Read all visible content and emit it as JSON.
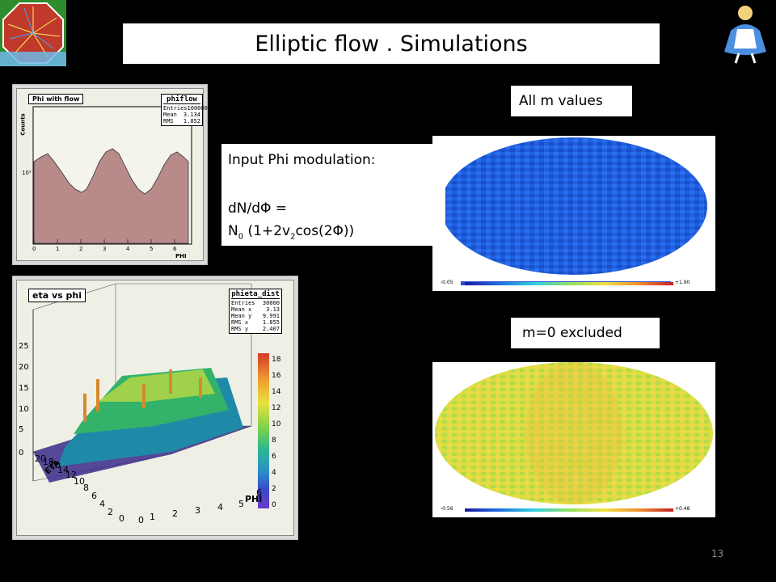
{
  "slide": {
    "title": "Elliptic flow . Simulations",
    "page_number": "13"
  },
  "phi_hist": {
    "title": "Phi with flow",
    "stats_name": "phiflow",
    "stats": [
      {
        "label": "Entries",
        "value": "100000"
      },
      {
        "label": "Mean",
        "value": "3.134"
      },
      {
        "label": "RMS",
        "value": "1.852"
      }
    ],
    "ylabel": "Counts",
    "xlabel": "PHI",
    "ytick": "10³",
    "xticks": [
      "0",
      "1",
      "2",
      "3",
      "4",
      "5",
      "6"
    ]
  },
  "modulation": {
    "line1": "Input Phi modulation:",
    "line2": "dN/dΦ =",
    "line3_prefix": "N",
    "line3_sub0": "0",
    "line3_mid": " (1+2v",
    "line3_sub2": "2",
    "line3_suffix": "cos(2Φ))"
  },
  "eta_phi": {
    "title": "eta vs phi",
    "stats_name": "phieta_dist",
    "stats": [
      {
        "label": "Entries",
        "value": "30000"
      },
      {
        "label": "Mean x",
        "value": "3.13"
      },
      {
        "label": "Mean y",
        "value": "9.991"
      },
      {
        "label": "RMS x",
        "value": "1.855"
      },
      {
        "label": "RMS y",
        "value": "2.407"
      }
    ],
    "zticks": [
      "0",
      "5",
      "10",
      "15",
      "20",
      "25"
    ],
    "palette_ticks": [
      "0",
      "2",
      "4",
      "6",
      "8",
      "10",
      "12",
      "14",
      "16",
      "18"
    ],
    "xticks": [
      "0",
      "1",
      "2",
      "3",
      "4",
      "5",
      "6"
    ],
    "xlabel": "PHI",
    "yticks": [
      "0",
      "2",
      "4",
      "6",
      "8",
      "10",
      "12",
      "14",
      "16",
      "18",
      "20"
    ],
    "ylabel": "ETA"
  },
  "map_all": {
    "label": "All m values",
    "scale_min": "-0.05",
    "scale_max": "+1.90"
  },
  "map_m0": {
    "label": "m=0 excluded",
    "scale_min": "-0.56",
    "scale_max": "+0.48"
  },
  "colors": {
    "background": "#000000",
    "hist_fill": "#b88a8a",
    "map_blue": "#1e5fe0",
    "map_yellow": "#d8e040"
  }
}
